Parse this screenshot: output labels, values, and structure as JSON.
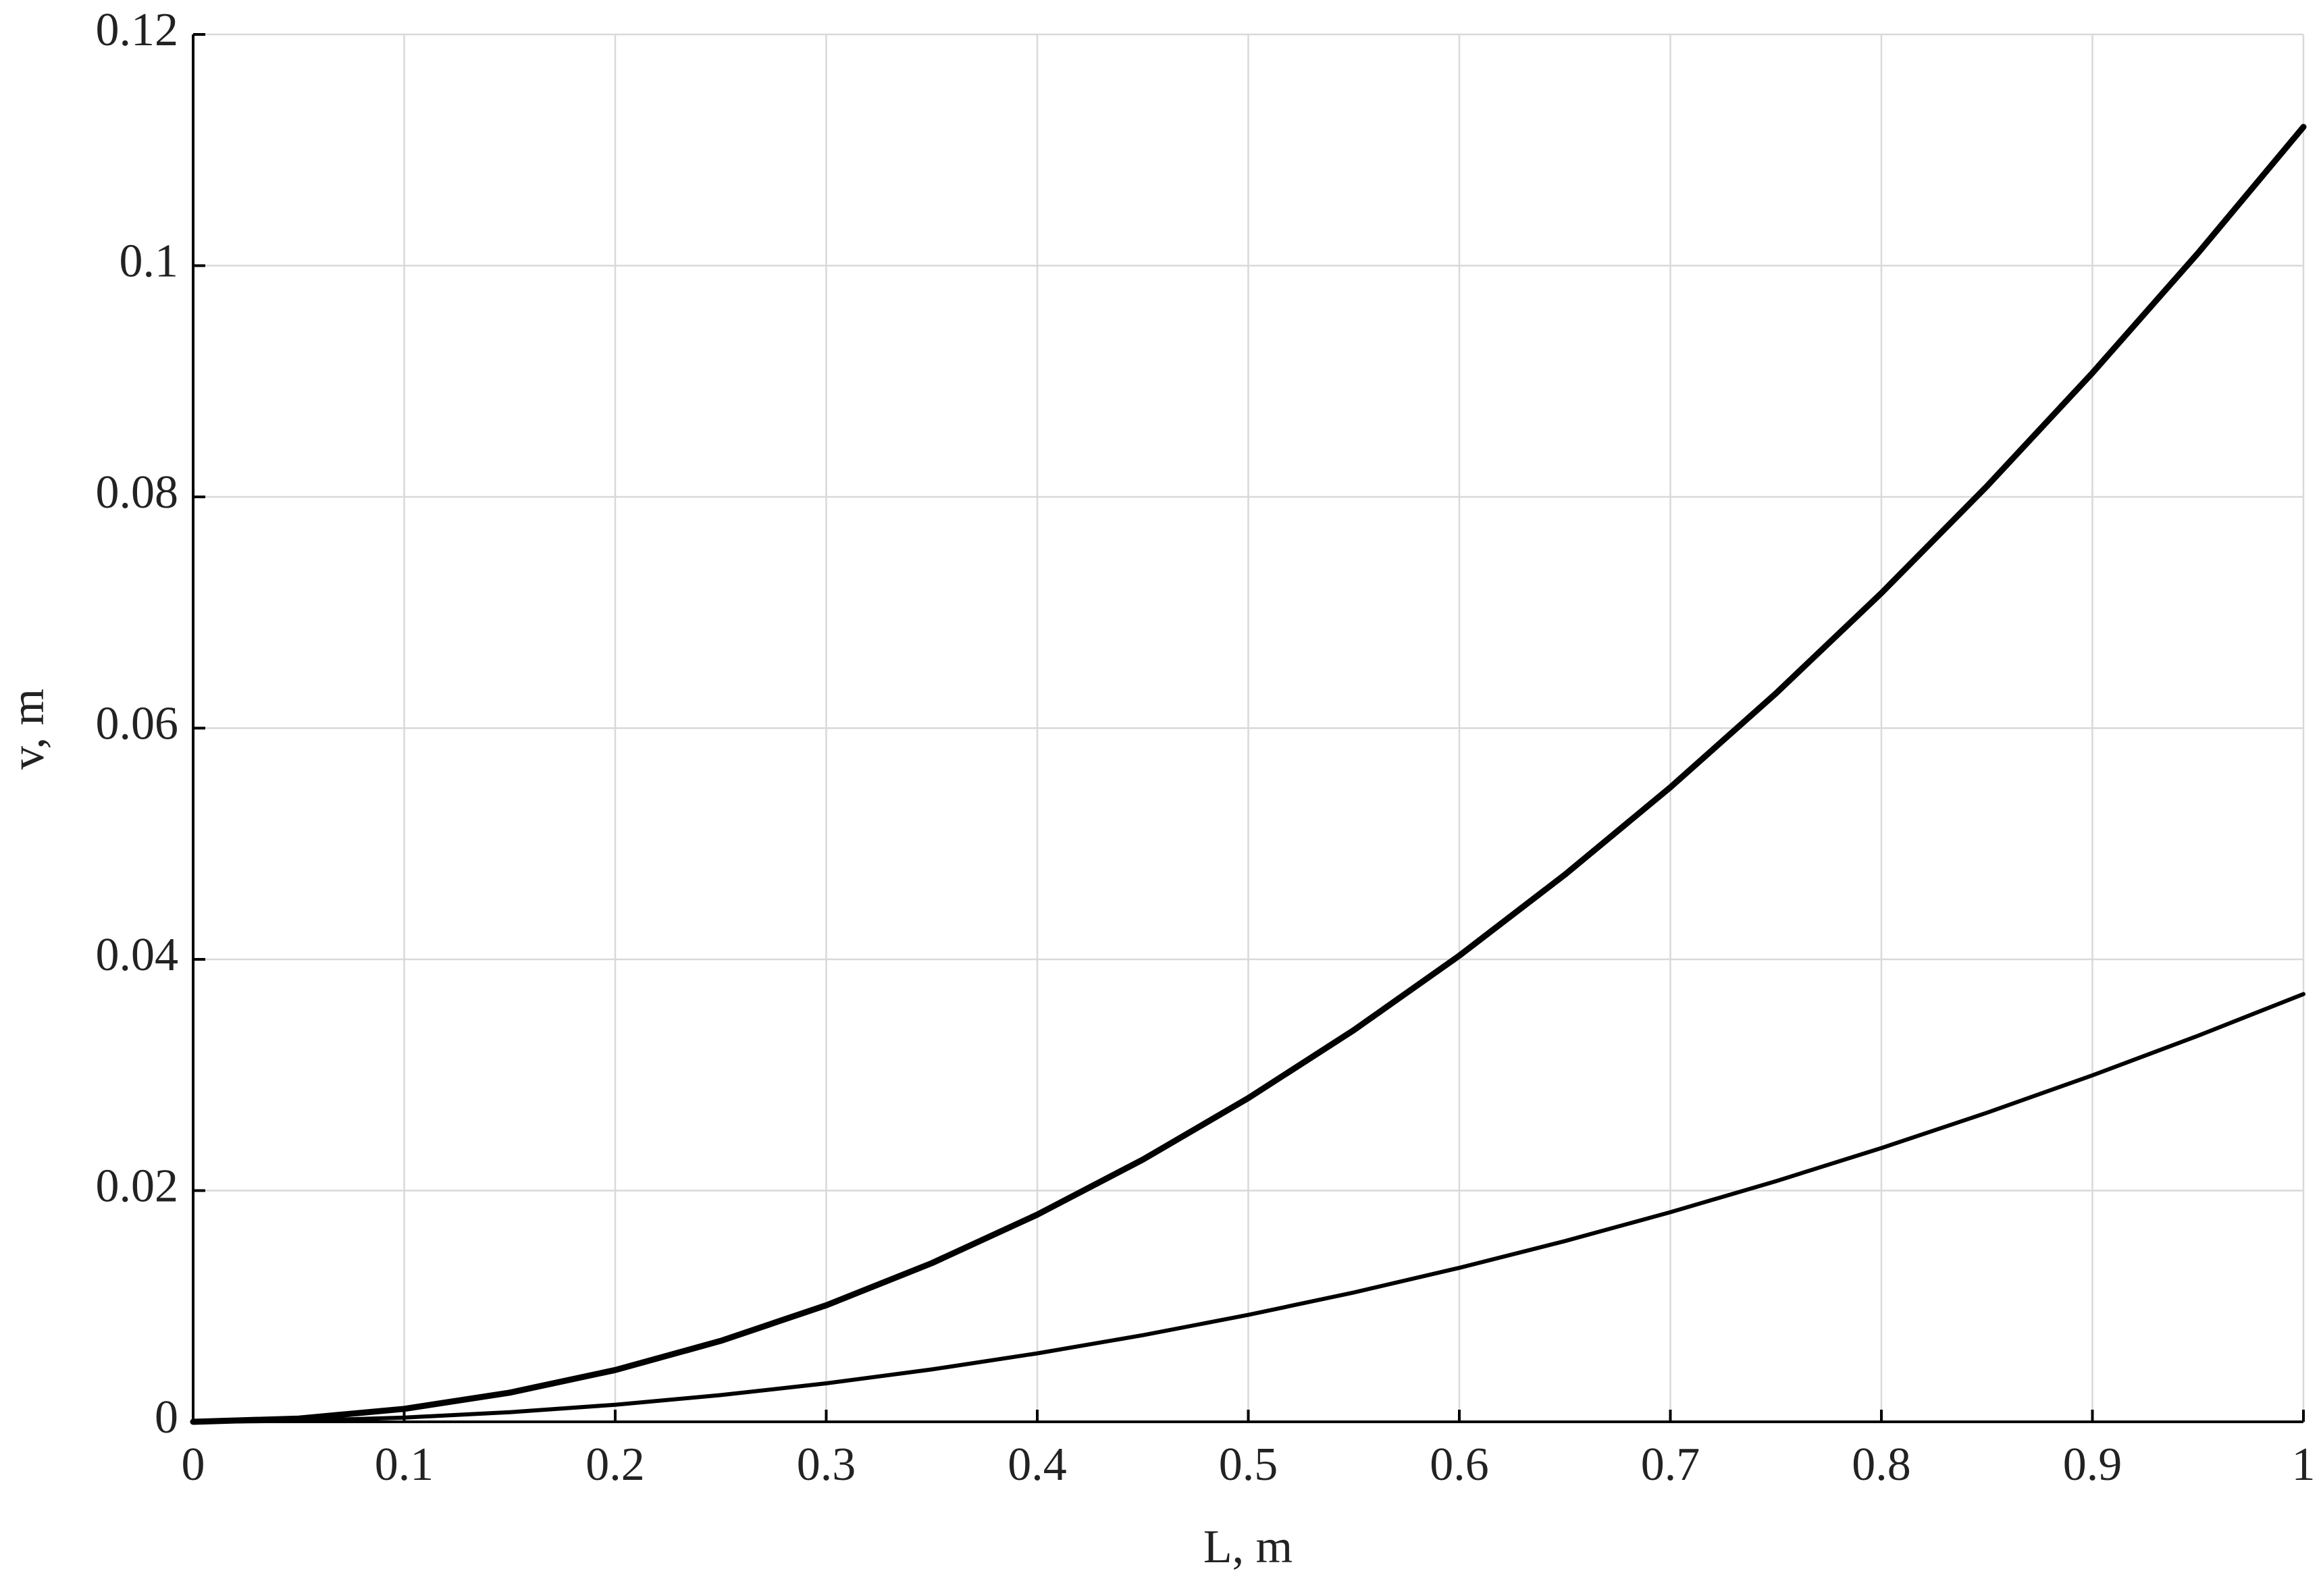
{
  "chart_data": {
    "type": "line",
    "xlabel": "L, m",
    "ylabel": "v, m",
    "x": [
      0,
      0.05,
      0.1,
      0.15,
      0.2,
      0.25,
      0.3,
      0.35,
      0.4,
      0.45,
      0.5,
      0.55,
      0.6,
      0.65,
      0.7,
      0.75,
      0.8,
      0.85,
      0.9,
      0.95,
      1
    ],
    "series": [
      {
        "color": "#000000",
        "values": [
          0,
          0.00028,
          0.00112,
          0.00252,
          0.00448,
          0.007,
          0.01008,
          0.01372,
          0.01792,
          0.02268,
          0.028,
          0.03388,
          0.04032,
          0.04732,
          0.05488,
          0.063,
          0.07168,
          0.08092,
          0.09072,
          0.10108,
          0.112
        ]
      },
      {
        "color": "#000000",
        "values": [
          0,
          9e-05,
          0.00037,
          0.00083,
          0.00148,
          0.00231,
          0.00333,
          0.00453,
          0.00592,
          0.00749,
          0.00925,
          0.01119,
          0.01332,
          0.01563,
          0.01813,
          0.02081,
          0.02368,
          0.02673,
          0.02997,
          0.03339,
          0.037
        ]
      }
    ],
    "xlim": [
      0,
      1
    ],
    "xticks": [
      0,
      0.1,
      0.2,
      0.3,
      0.4,
      0.5,
      0.6,
      0.7,
      0.8,
      0.9,
      1
    ],
    "ylim": [
      0,
      0.12
    ],
    "yticks": [
      0,
      0.02,
      0.04,
      0.06,
      0.08,
      0.1,
      0.12
    ],
    "grid": true
  }
}
